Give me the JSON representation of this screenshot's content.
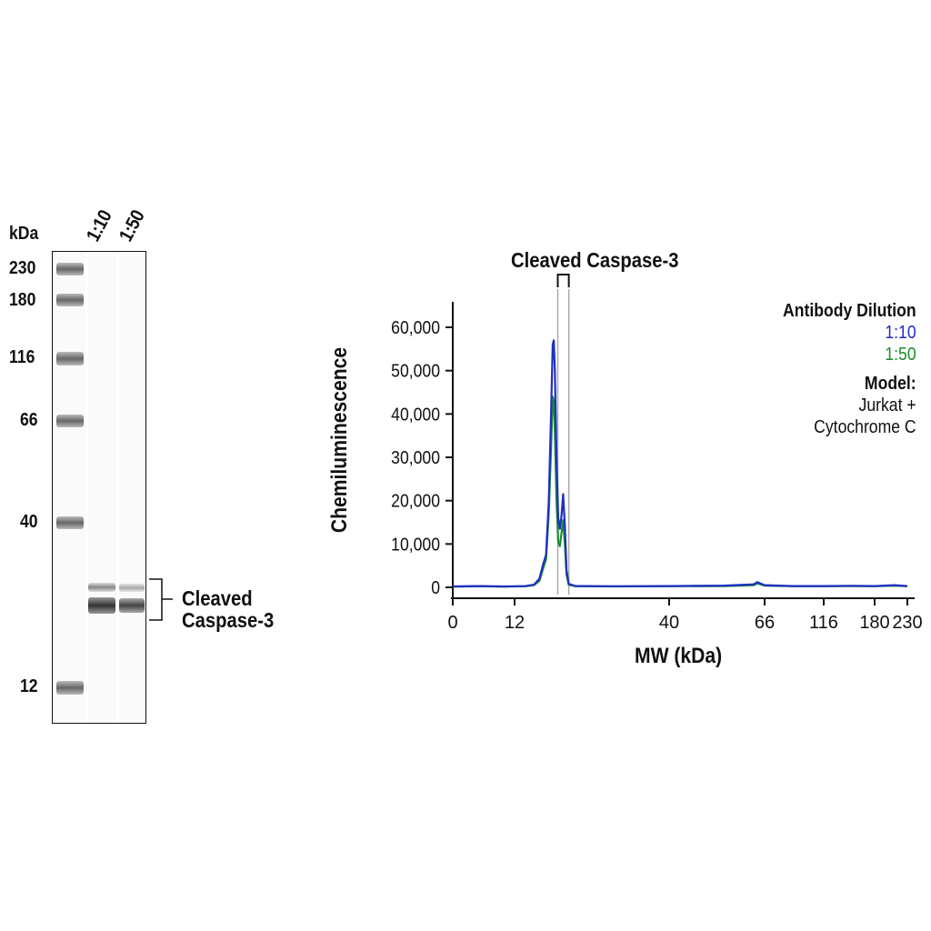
{
  "gel": {
    "unit_label": "kDa",
    "lanes": [
      "1:10",
      "1:50"
    ],
    "markers": [
      "230",
      "180",
      "116",
      "66",
      "40",
      "12"
    ],
    "band_label_line1": "Cleaved",
    "band_label_line2": "Caspase-3"
  },
  "chart_data": {
    "type": "line",
    "title": "Cleaved Caspase-3",
    "xlabel": "MW (kDa)",
    "ylabel": "Chemiluminescence",
    "x_ticks": [
      "0",
      "12",
      "40",
      "66",
      "116",
      "180",
      "230"
    ],
    "y_ticks": [
      "0",
      "10,000",
      "20,000",
      "30,000",
      "40,000",
      "50,000",
      "60,000"
    ],
    "ylim": [
      0,
      65000
    ],
    "x_scale": "log-molecular-weight",
    "peak_window_kda": [
      19,
      21
    ],
    "legend": {
      "title": "Antibody Dilution",
      "model_title": "Model:",
      "model_line1": "Jurkat +",
      "model_line2": "Cytochrome C"
    },
    "series": [
      {
        "name": "1:10",
        "color": "#1f2fc4",
        "points": [
          [
            0,
            200
          ],
          [
            5,
            300
          ],
          [
            10,
            200
          ],
          [
            12,
            250
          ],
          [
            14,
            300
          ],
          [
            15.5,
            600
          ],
          [
            16.5,
            2000
          ],
          [
            17.2,
            5500
          ],
          [
            17.7,
            7500
          ],
          [
            18.2,
            20000
          ],
          [
            18.6,
            40000
          ],
          [
            18.9,
            56000
          ],
          [
            19.1,
            57000
          ],
          [
            19.3,
            50000
          ],
          [
            19.6,
            30000
          ],
          [
            19.9,
            16000
          ],
          [
            20.2,
            13500
          ],
          [
            20.5,
            16500
          ],
          [
            20.8,
            21500
          ],
          [
            21.1,
            14000
          ],
          [
            21.4,
            4000
          ],
          [
            21.8,
            800
          ],
          [
            23,
            300
          ],
          [
            30,
            250
          ],
          [
            40,
            300
          ],
          [
            55,
            400
          ],
          [
            63,
            700
          ],
          [
            64,
            1200
          ],
          [
            66,
            500
          ],
          [
            90,
            300
          ],
          [
            116,
            300
          ],
          [
            150,
            350
          ],
          [
            180,
            300
          ],
          [
            210,
            500
          ],
          [
            230,
            300
          ]
        ]
      },
      {
        "name": "1:50",
        "color": "#1a8c2b",
        "points": [
          [
            0,
            150
          ],
          [
            5,
            250
          ],
          [
            10,
            150
          ],
          [
            12,
            200
          ],
          [
            14,
            250
          ],
          [
            15.5,
            500
          ],
          [
            16.5,
            1500
          ],
          [
            17.2,
            4500
          ],
          [
            17.7,
            6500
          ],
          [
            18.2,
            17000
          ],
          [
            18.6,
            32000
          ],
          [
            18.9,
            44000
          ],
          [
            19.1,
            43000
          ],
          [
            19.3,
            36000
          ],
          [
            19.6,
            20000
          ],
          [
            19.9,
            10500
          ],
          [
            20.2,
            9500
          ],
          [
            20.5,
            12500
          ],
          [
            20.8,
            15500
          ],
          [
            21.1,
            10000
          ],
          [
            21.4,
            3000
          ],
          [
            21.8,
            600
          ],
          [
            23,
            250
          ],
          [
            30,
            200
          ],
          [
            40,
            250
          ],
          [
            55,
            300
          ],
          [
            63,
            500
          ],
          [
            64,
            900
          ],
          [
            66,
            400
          ],
          [
            90,
            250
          ],
          [
            116,
            250
          ],
          [
            150,
            300
          ],
          [
            180,
            250
          ],
          [
            210,
            400
          ],
          [
            230,
            250
          ]
        ]
      }
    ]
  }
}
